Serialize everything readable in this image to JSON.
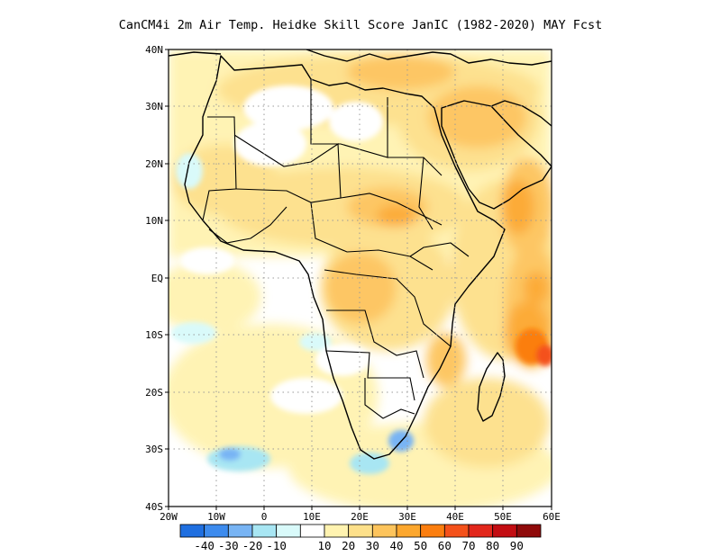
{
  "title": "CanCM4i  2m Air Temp. Heidke Skill Score JanIC (1982-2020) MAY Fcst",
  "map": {
    "lon_range": [
      -20,
      60
    ],
    "lat_range": [
      -40,
      40
    ],
    "grid": "dotted",
    "lat_ticks": [
      "40N",
      "30N",
      "20N",
      "10N",
      "EQ",
      "10S",
      "20S",
      "30S",
      "40S"
    ],
    "lon_ticks": [
      "20W",
      "10W",
      "0",
      "10E",
      "20E",
      "30E",
      "40E",
      "50E",
      "60E"
    ]
  },
  "colorbar": {
    "labels": [
      "-40",
      "-30",
      "-20",
      "-10",
      "10",
      "20",
      "30",
      "40",
      "50",
      "60",
      "70",
      "80",
      "90"
    ],
    "colors": [
      "#1f6fe0",
      "#3d8bee",
      "#78b4f4",
      "#a8e6f3",
      "#d9fafa",
      "#ffffff",
      "#fff3b0",
      "#fde08a",
      "#fdc45c",
      "#fca72e",
      "#fb7e0f",
      "#f4511a",
      "#e2271b",
      "#c30d12",
      "#8f0a0a"
    ]
  },
  "skill_regions": [
    {
      "level": "20",
      "color": "#fde08a",
      "desc": "widespread"
    },
    {
      "level": "30",
      "color": "#fdc45c",
      "desc": "central africa, horn, arabia"
    },
    {
      "level": "40",
      "color": "#fca72e",
      "desc": "indian ocean"
    },
    {
      "level": "50",
      "color": "#fb7e0f",
      "desc": "east of madagascar"
    },
    {
      "level": "-10",
      "color": "#a8e6f3",
      "desc": "southern atlantic, s. africa"
    },
    {
      "level": "-20",
      "color": "#78b4f4",
      "desc": "south atlantic patch"
    }
  ]
}
